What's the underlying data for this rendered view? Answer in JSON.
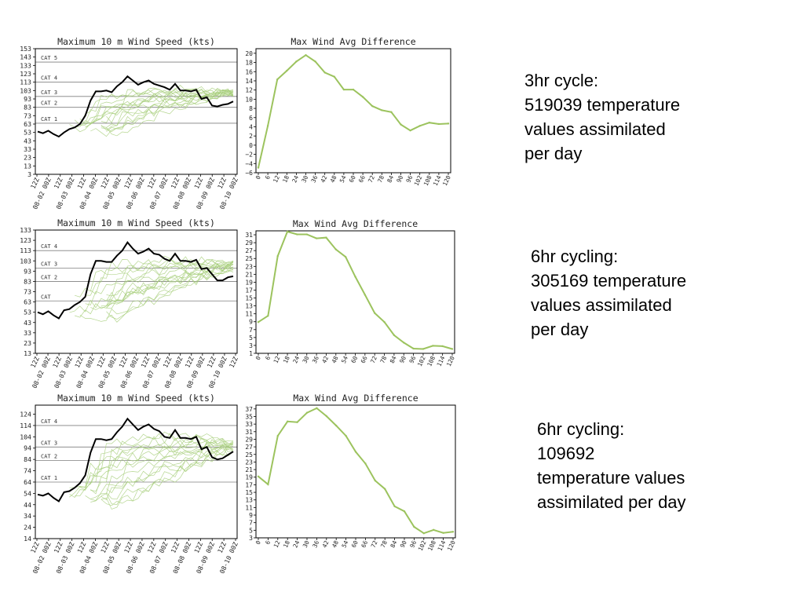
{
  "colors": {
    "accent": "#9cc35e",
    "observed": "#000000",
    "ensemble": "#a8cf7c",
    "frame": "#000000",
    "grid": "#7f7f7f"
  },
  "notes": [
    {
      "lines": [
        "3hr cycle:",
        "519039 temperature",
        "values assimilated",
        "per day"
      ]
    },
    {
      "lines": [
        "6hr cycling:",
        "305169 temperature",
        "values assimilated",
        "per day"
      ]
    },
    {
      "lines": [
        "6hr cycling:",
        "109692",
        "temperature values",
        "assimilated per day"
      ]
    }
  ],
  "chart_data": [
    {
      "type": "line",
      "title": "Maximum 10 m Wind Speed (kts)",
      "x_tick_labels": [
        "12Z",
        "08-02 00Z",
        "12Z",
        "08-03 00Z",
        "12Z",
        "08-04 00Z",
        "12Z",
        "08-05 00Z",
        "12Z",
        "08-06 00Z",
        "12Z",
        "08-07 00Z",
        "12Z",
        "08-08 00Z",
        "12Z",
        "08-09 00Z",
        "12Z",
        "08-10 00Z"
      ],
      "y_ticks": [
        3,
        13,
        23,
        33,
        43,
        53,
        63,
        73,
        83,
        93,
        103,
        113,
        123,
        133,
        143,
        153
      ],
      "ylim": [
        3,
        153
      ],
      "category_lines": [
        {
          "label": "CAT 5",
          "value": 137
        },
        {
          "label": "CAT 4",
          "value": 113
        },
        {
          "label": "CAT 3",
          "value": 96
        },
        {
          "label": "CAT 2",
          "value": 83
        },
        {
          "label": "CAT 1",
          "value": 64
        }
      ],
      "ensemble_spread": {
        "lower": [
          55,
          50,
          56,
          60,
          65,
          70,
          75,
          78,
          82,
          85,
          88,
          90,
          93,
          96,
          98,
          100
        ],
        "upper": [
          68,
          80,
          100,
          100,
          101,
          103,
          103,
          104,
          105,
          103,
          103,
          104,
          103,
          102,
          101,
          100
        ]
      },
      "series": [
        {
          "values": [
            54,
            52,
            55,
            51,
            48,
            53,
            57,
            59,
            63,
            73,
            91,
            102,
            102,
            103,
            101,
            108,
            113,
            120,
            115,
            110,
            113,
            115,
            111,
            109,
            107,
            104,
            111,
            103,
            103,
            102,
            104,
            93,
            95,
            85,
            84,
            86,
            87,
            90
          ]
        }
      ]
    },
    {
      "type": "line",
      "title": "Max Wind Avg Difference",
      "x": [
        0,
        6,
        12,
        18,
        24,
        30,
        36,
        42,
        48,
        54,
        60,
        66,
        72,
        78,
        84,
        90,
        96,
        102,
        108,
        114,
        120
      ],
      "x_tick_labels": [
        "0",
        "6",
        "12",
        "18",
        "24",
        "30",
        "36",
        "42",
        "48",
        "54",
        "60",
        "66",
        "72",
        "78",
        "84",
        "90",
        "96",
        "102",
        "108",
        "114",
        "120"
      ],
      "y_ticks": [
        -6,
        -4,
        -2,
        0,
        2,
        4,
        6,
        8,
        10,
        12,
        14,
        16,
        18,
        20
      ],
      "ylim": [
        -6,
        21
      ],
      "series": [
        {
          "values": [
            -4.9,
            4.2,
            14.3,
            16.2,
            18.2,
            19.6,
            18.2,
            15.8,
            14.9,
            12.1,
            12.1,
            10.5,
            8.5,
            7.6,
            7.2,
            4.5,
            3.2,
            4.2,
            4.9,
            4.6,
            4.7
          ]
        }
      ]
    },
    {
      "type": "line",
      "title": "Maximum 10 m Wind Speed (kts)",
      "x_tick_labels": [
        "12Z",
        "08-02 00Z",
        "12Z",
        "08-03 00Z",
        "12Z",
        "08-04 00Z",
        "12Z",
        "08-05 00Z",
        "12Z",
        "08-06 00Z",
        "12Z",
        "08-07 00Z",
        "12Z",
        "08-08 00Z",
        "12Z",
        "08-09 00Z",
        "12Z",
        "08-10 00Z",
        "12Z"
      ],
      "y_ticks": [
        13,
        23,
        33,
        43,
        53,
        63,
        73,
        83,
        93,
        103,
        113,
        123,
        133
      ],
      "ylim": [
        13,
        133
      ],
      "category_lines": [
        {
          "label": "CAT 4",
          "value": 113
        },
        {
          "label": "CAT 3",
          "value": 96
        },
        {
          "label": "CAT 2",
          "value": 83
        },
        {
          "label": "CAT",
          "value": 64
        }
      ],
      "ensemble_spread": {
        "lower": [
          48,
          45,
          48,
          52,
          56,
          60,
          64,
          68,
          72,
          76,
          80,
          84,
          87,
          90,
          94,
          96
        ],
        "upper": [
          70,
          85,
          100,
          100,
          101,
          103,
          103,
          104,
          105,
          103,
          103,
          104,
          103,
          102,
          101,
          100
        ]
      },
      "series": [
        {
          "values": [
            53,
            51,
            54,
            50,
            47,
            55,
            56,
            60,
            63,
            68,
            90,
            103,
            103,
            102,
            102,
            108,
            113,
            121,
            115,
            110,
            112,
            115,
            110,
            109,
            105,
            103,
            110,
            103,
            103,
            102,
            104,
            95,
            96,
            90,
            84,
            84,
            87,
            88
          ]
        }
      ]
    },
    {
      "type": "line",
      "title": "Max Wind Avg Difference",
      "x": [
        0,
        6,
        12,
        18,
        24,
        30,
        36,
        42,
        48,
        54,
        60,
        66,
        72,
        78,
        84,
        90,
        96,
        102,
        108,
        114,
        120
      ],
      "x_tick_labels": [
        "0",
        "6",
        "12",
        "18",
        "24",
        "30",
        "36",
        "42",
        "48",
        "54",
        "60",
        "66",
        "72",
        "78",
        "84",
        "90",
        "96",
        "102",
        "108",
        "114",
        "120"
      ],
      "y_ticks": [
        1,
        3,
        5,
        7,
        9,
        11,
        13,
        15,
        17,
        19,
        21,
        23,
        25,
        27,
        29,
        31
      ],
      "ylim": [
        1,
        32
      ],
      "series": [
        {
          "values": [
            8.9,
            10.5,
            25.6,
            31.8,
            31.1,
            31.1,
            30.1,
            30.3,
            27.3,
            25.4,
            20.4,
            15.8,
            11.2,
            8.9,
            5.6,
            3.7,
            2.2,
            2.1,
            2.9,
            2.8,
            2.1
          ]
        }
      ]
    },
    {
      "type": "line",
      "title": "Maximum 10 m Wind Speed (kts)",
      "x_tick_labels": [
        "12Z",
        "08-02 00Z",
        "12Z",
        "08-03 00Z",
        "12Z",
        "08-04 00Z",
        "12Z",
        "08-05 00Z",
        "12Z",
        "08-06 00Z",
        "12Z",
        "08-07 00Z",
        "12Z",
        "08-08 00Z",
        "12Z",
        "08-09 00Z",
        "12Z",
        "08-10 00Z"
      ],
      "y_ticks": [
        14,
        24,
        34,
        44,
        54,
        64,
        74,
        84,
        94,
        104,
        114,
        124
      ],
      "ylim": [
        14,
        132
      ],
      "category_lines": [
        {
          "label": "CAT 4",
          "value": 114
        },
        {
          "label": "CAT 3",
          "value": 95
        },
        {
          "label": "CAT 2",
          "value": 83
        },
        {
          "label": "CAT 1",
          "value": 64
        }
      ],
      "ensemble_spread": {
        "lower": [
          48,
          44,
          46,
          48,
          52,
          56,
          60,
          64,
          68,
          72,
          76,
          80,
          84,
          88,
          90,
          92
        ],
        "upper": [
          60,
          70,
          95,
          100,
          102,
          104,
          105,
          106,
          105,
          103,
          103,
          104,
          103,
          102,
          101,
          100
        ]
      },
      "series": [
        {
          "values": [
            53,
            52,
            54,
            50,
            47,
            55,
            56,
            59,
            63,
            70,
            90,
            102,
            102,
            101,
            102,
            108,
            113,
            120,
            115,
            110,
            113,
            115,
            111,
            109,
            104,
            103,
            110,
            103,
            103,
            102,
            104,
            93,
            95,
            86,
            84,
            85,
            88,
            91
          ]
        }
      ]
    },
    {
      "type": "line",
      "title": "Max Wind Avg Difference",
      "x": [
        0,
        6,
        12,
        18,
        24,
        30,
        36,
        42,
        48,
        54,
        60,
        66,
        72,
        78,
        84,
        90,
        96,
        102,
        108,
        114,
        120
      ],
      "x_tick_labels": [
        "0",
        "6",
        "12",
        "18",
        "24",
        "30",
        "36",
        "42",
        "48",
        "54",
        "60",
        "66",
        "72",
        "78",
        "84",
        "90",
        "96",
        "102",
        "108",
        "114",
        "120"
      ],
      "y_ticks": [
        3,
        5,
        7,
        9,
        11,
        13,
        15,
        17,
        19,
        21,
        23,
        25,
        27,
        29,
        31,
        33,
        35,
        37
      ],
      "ylim": [
        3,
        38
      ],
      "series": [
        {
          "values": [
            19.2,
            17.1,
            29.9,
            33.7,
            33.5,
            36.0,
            37.2,
            35.1,
            32.6,
            29.9,
            25.7,
            22.6,
            18.1,
            15.9,
            11.3,
            10.0,
            5.9,
            4.2,
            5.1,
            4.3,
            4.6
          ]
        }
      ]
    }
  ]
}
